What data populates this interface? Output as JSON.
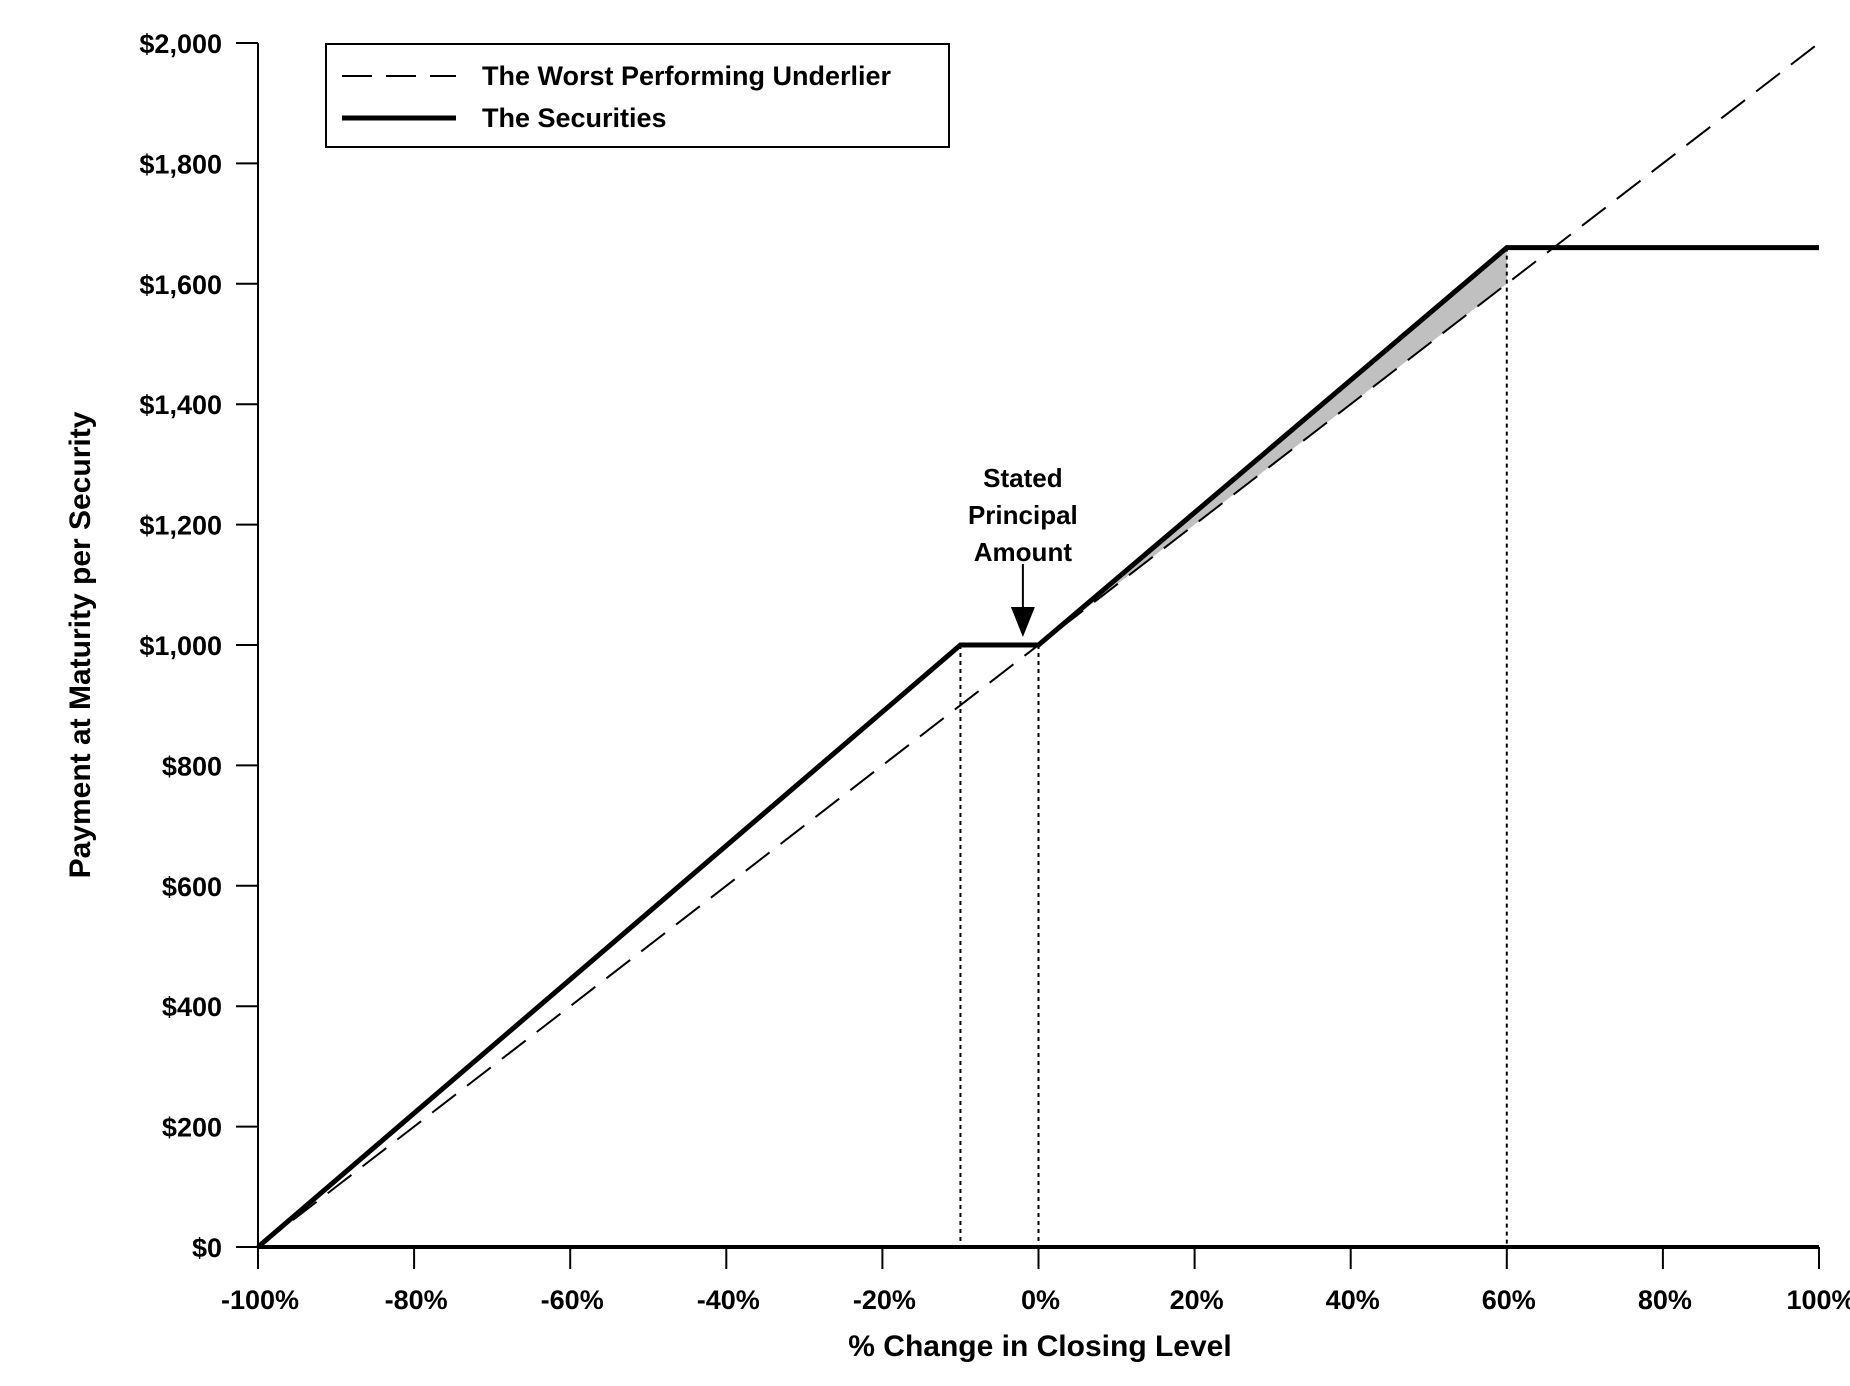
{
  "chart_data": {
    "type": "line",
    "title": "",
    "xlabel": "% Change in Closing Level",
    "ylabel": "Payment at Maturity per Security",
    "xlim": [
      -100,
      100
    ],
    "ylim": [
      0,
      2000
    ],
    "x_ticks": [
      -100,
      -80,
      -60,
      -40,
      -20,
      0,
      20,
      40,
      60,
      80,
      100
    ],
    "x_tick_labels": [
      "-100%",
      "-80%",
      "-60%",
      "-40%",
      "-20%",
      "0%",
      "20%",
      "40%",
      "60%",
      "80%",
      "100%"
    ],
    "y_ticks": [
      0,
      200,
      400,
      600,
      800,
      1000,
      1200,
      1400,
      1600,
      1800,
      2000
    ],
    "y_tick_labels": [
      "$0",
      "$200",
      "$400",
      "$600",
      "$800",
      "$1,000",
      "$1,200",
      "$1,400",
      "$1,600",
      "$1,800",
      "$2,000"
    ],
    "grid": false,
    "legend_position": "top-left",
    "series": [
      {
        "name": "The Worst Performing Underlier",
        "style": "dashed",
        "x": [
          -100,
          100
        ],
        "y": [
          0,
          2000
        ]
      },
      {
        "name": "The Securities",
        "style": "solid",
        "x": [
          -100,
          -10,
          0,
          60,
          100
        ],
        "y": [
          0,
          1000,
          1000,
          1660,
          1660
        ]
      }
    ],
    "reference_lines_x": [
      -10,
      0,
      60
    ],
    "shaded_region": {
      "x_from": 0,
      "x_to": 60,
      "color": "#c0c0c0"
    },
    "annotation": {
      "lines": [
        "Stated",
        "Principal",
        "Amount"
      ],
      "x": -2,
      "y": 1000
    }
  }
}
